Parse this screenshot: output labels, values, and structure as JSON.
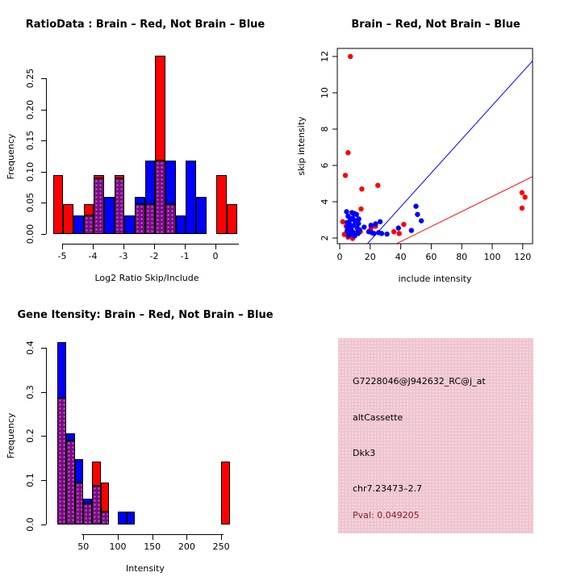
{
  "colors": {
    "brain": "#ff0000",
    "not_brain": "#0000ff",
    "overlap": "#7b0a86",
    "pval_text": "#8b1b1b",
    "info_box_bg": "#eec5cf"
  },
  "panels": {
    "info_box": {
      "probe_id": "G7228046@J942632_RC@j_at",
      "splice_type": "altCassette",
      "gene": "Dkk3",
      "location": "chr7.23473–2.7",
      "pval": "Pval: 0.049205"
    }
  },
  "chart_data": [
    {
      "id": "ratio_hist",
      "type": "bar",
      "overlay": true,
      "title": "RatioData : Brain – Red, Not Brain – Blue",
      "xlabel": "Log2 Ratio Skip/Include",
      "ylabel": "Frequency",
      "legend": {
        "red": "Brain",
        "blue": "Not Brain"
      },
      "xlim": [
        -5.55,
        0.95
      ],
      "ylim": [
        0,
        0.29
      ],
      "bins": [
        {
          "x0": -5.3,
          "x1": -4.97,
          "red": 0.095,
          "blue": 0
        },
        {
          "x0": -4.97,
          "x1": -4.63,
          "red": 0.048,
          "blue": 0
        },
        {
          "x0": -4.63,
          "x1": -4.3,
          "red": 0,
          "blue": 0.03
        },
        {
          "x0": -4.3,
          "x1": -3.97,
          "red": 0.048,
          "blue": 0.03
        },
        {
          "x0": -3.97,
          "x1": -3.63,
          "red": 0.095,
          "blue": 0.089
        },
        {
          "x0": -3.63,
          "x1": -3.3,
          "red": 0,
          "blue": 0.059
        },
        {
          "x0": -3.3,
          "x1": -2.97,
          "red": 0.095,
          "blue": 0.089
        },
        {
          "x0": -2.97,
          "x1": -2.63,
          "red": 0,
          "blue": 0.03
        },
        {
          "x0": -2.63,
          "x1": -2.3,
          "red": 0.048,
          "blue": 0.059
        },
        {
          "x0": -2.3,
          "x1": -1.97,
          "red": 0.048,
          "blue": 0.118
        },
        {
          "x0": -1.97,
          "x1": -1.63,
          "red": 0.286,
          "blue": 0.118
        },
        {
          "x0": -1.63,
          "x1": -1.3,
          "red": 0.048,
          "blue": 0.118
        },
        {
          "x0": -1.3,
          "x1": -0.97,
          "red": 0,
          "blue": 0.03
        },
        {
          "x0": -0.97,
          "x1": -0.63,
          "red": 0,
          "blue": 0.118
        },
        {
          "x0": -0.63,
          "x1": -0.3,
          "red": 0,
          "blue": 0.059
        },
        {
          "x0": 0.03,
          "x1": 0.37,
          "red": 0.095,
          "blue": 0
        },
        {
          "x0": 0.37,
          "x1": 0.7,
          "red": 0.048,
          "blue": 0
        }
      ],
      "x_tick_values": [
        -5,
        -4,
        -3,
        -2,
        -1,
        0
      ],
      "x_tick_labels": [
        "-5",
        "-4",
        "-3",
        "-2",
        "-1",
        "0"
      ],
      "y_tick_values": [
        0,
        0.05,
        0.1,
        0.15,
        0.2,
        0.25
      ],
      "y_tick_labels": [
        "0.00",
        "0.05",
        "0.10",
        "0.15",
        "0.20",
        "0.25"
      ]
    },
    {
      "id": "scatter",
      "type": "scatter",
      "title": "Brain – Red, Not Brain – Blue",
      "xlabel": "include intensity",
      "ylabel": "skip intensity",
      "legend": {
        "red": "Brain",
        "blue": "Not Brain"
      },
      "xlim": [
        -5,
        126.5
      ],
      "ylim": [
        1.7,
        12.4
      ],
      "points_red": [
        [
          7,
          12.0
        ],
        [
          5.5,
          6.7
        ],
        [
          3.7,
          5.45
        ],
        [
          14.5,
          4.7
        ],
        [
          25,
          4.9
        ],
        [
          14,
          3.6
        ],
        [
          2,
          2.9
        ],
        [
          11,
          2.95
        ],
        [
          4.2,
          2.65
        ],
        [
          7.4,
          2.45
        ],
        [
          13.5,
          2.35
        ],
        [
          3,
          2.2
        ],
        [
          5.5,
          2.05
        ],
        [
          8.5,
          1.98
        ],
        [
          20.5,
          2.55
        ],
        [
          23.5,
          2.65
        ],
        [
          35.5,
          2.35
        ],
        [
          39,
          2.25
        ],
        [
          42,
          2.75
        ],
        [
          119.5,
          4.5
        ],
        [
          121.5,
          4.25
        ],
        [
          119.5,
          3.65
        ]
      ],
      "points_blue": [
        [
          4.5,
          3.45
        ],
        [
          8,
          3.4
        ],
        [
          9.5,
          3.35
        ],
        [
          11,
          3.3
        ],
        [
          5.5,
          3.2
        ],
        [
          8.5,
          3.1
        ],
        [
          12.5,
          3.05
        ],
        [
          7,
          3.0
        ],
        [
          10,
          2.95
        ],
        [
          4.8,
          2.85
        ],
        [
          12.3,
          2.8
        ],
        [
          6.5,
          2.75
        ],
        [
          9.2,
          2.7
        ],
        [
          5.2,
          2.62
        ],
        [
          11.5,
          2.55
        ],
        [
          7.3,
          2.5
        ],
        [
          13,
          2.45
        ],
        [
          4.8,
          2.4
        ],
        [
          8.5,
          2.35
        ],
        [
          6.2,
          2.3
        ],
        [
          10.8,
          2.28
        ],
        [
          7.8,
          2.2
        ],
        [
          5.8,
          2.15
        ],
        [
          9.8,
          2.12
        ],
        [
          12,
          2.25
        ],
        [
          16,
          2.6
        ],
        [
          19,
          2.35
        ],
        [
          21,
          2.3
        ],
        [
          22.5,
          2.25
        ],
        [
          25.5,
          2.3
        ],
        [
          27.5,
          2.25
        ],
        [
          20.5,
          2.7
        ],
        [
          23.5,
          2.78
        ],
        [
          26.5,
          2.9
        ],
        [
          31,
          2.22
        ],
        [
          38.5,
          2.55
        ],
        [
          47,
          2.42
        ],
        [
          50,
          3.75
        ],
        [
          51,
          3.3
        ],
        [
          53.5,
          2.95
        ]
      ],
      "lines": [
        {
          "color": "#0000ff",
          "slope": 0.093,
          "intercept": 0
        },
        {
          "color": "#ff0000",
          "slope": 0.0414,
          "intercept": 0.15
        }
      ],
      "x_tick_values": [
        0,
        20,
        40,
        60,
        80,
        100,
        120
      ],
      "x_tick_labels": [
        "0",
        "20",
        "40",
        "60",
        "80",
        "100",
        "120"
      ],
      "y_tick_values": [
        2,
        4,
        6,
        8,
        10,
        12
      ],
      "y_tick_labels": [
        "2",
        "4",
        "6",
        "8",
        "10",
        "12"
      ]
    },
    {
      "id": "gene_hist",
      "type": "bar",
      "overlay": true,
      "title": "Gene Itensity: Brain – Red, Not Brain – Blue",
      "xlabel": "Intensity",
      "ylabel": "Frequency",
      "legend": {
        "red": "Brain",
        "blue": "Not Brain"
      },
      "xlim": [
        5,
        280
      ],
      "ylim": [
        0,
        0.42
      ],
      "bins": [
        {
          "x0": 12.5,
          "x1": 25,
          "red": 0.286,
          "blue": 0.412
        },
        {
          "x0": 25,
          "x1": 37.5,
          "red": 0.19,
          "blue": 0.206
        },
        {
          "x0": 37.5,
          "x1": 50,
          "red": 0.095,
          "blue": 0.147
        },
        {
          "x0": 50,
          "x1": 62.5,
          "red": 0.048,
          "blue": 0.059
        },
        {
          "x0": 62.5,
          "x1": 75,
          "red": 0.143,
          "blue": 0.088
        },
        {
          "x0": 75,
          "x1": 87.5,
          "red": 0.095,
          "blue": 0.029
        },
        {
          "x0": 100,
          "x1": 112.5,
          "red": 0,
          "blue": 0.029
        },
        {
          "x0": 112.5,
          "x1": 125,
          "red": 0,
          "blue": 0.029
        },
        {
          "x0": 250,
          "x1": 262.5,
          "red": 0.143,
          "blue": 0
        }
      ],
      "x_tick_values": [
        50,
        100,
        150,
        200,
        250
      ],
      "x_tick_labels": [
        "50",
        "100",
        "150",
        "200",
        "250"
      ],
      "y_tick_values": [
        0,
        0.1,
        0.2,
        0.3,
        0.4
      ],
      "y_tick_labels": [
        "0.0",
        "0.1",
        "0.2",
        "0.3",
        "0.4"
      ]
    }
  ]
}
